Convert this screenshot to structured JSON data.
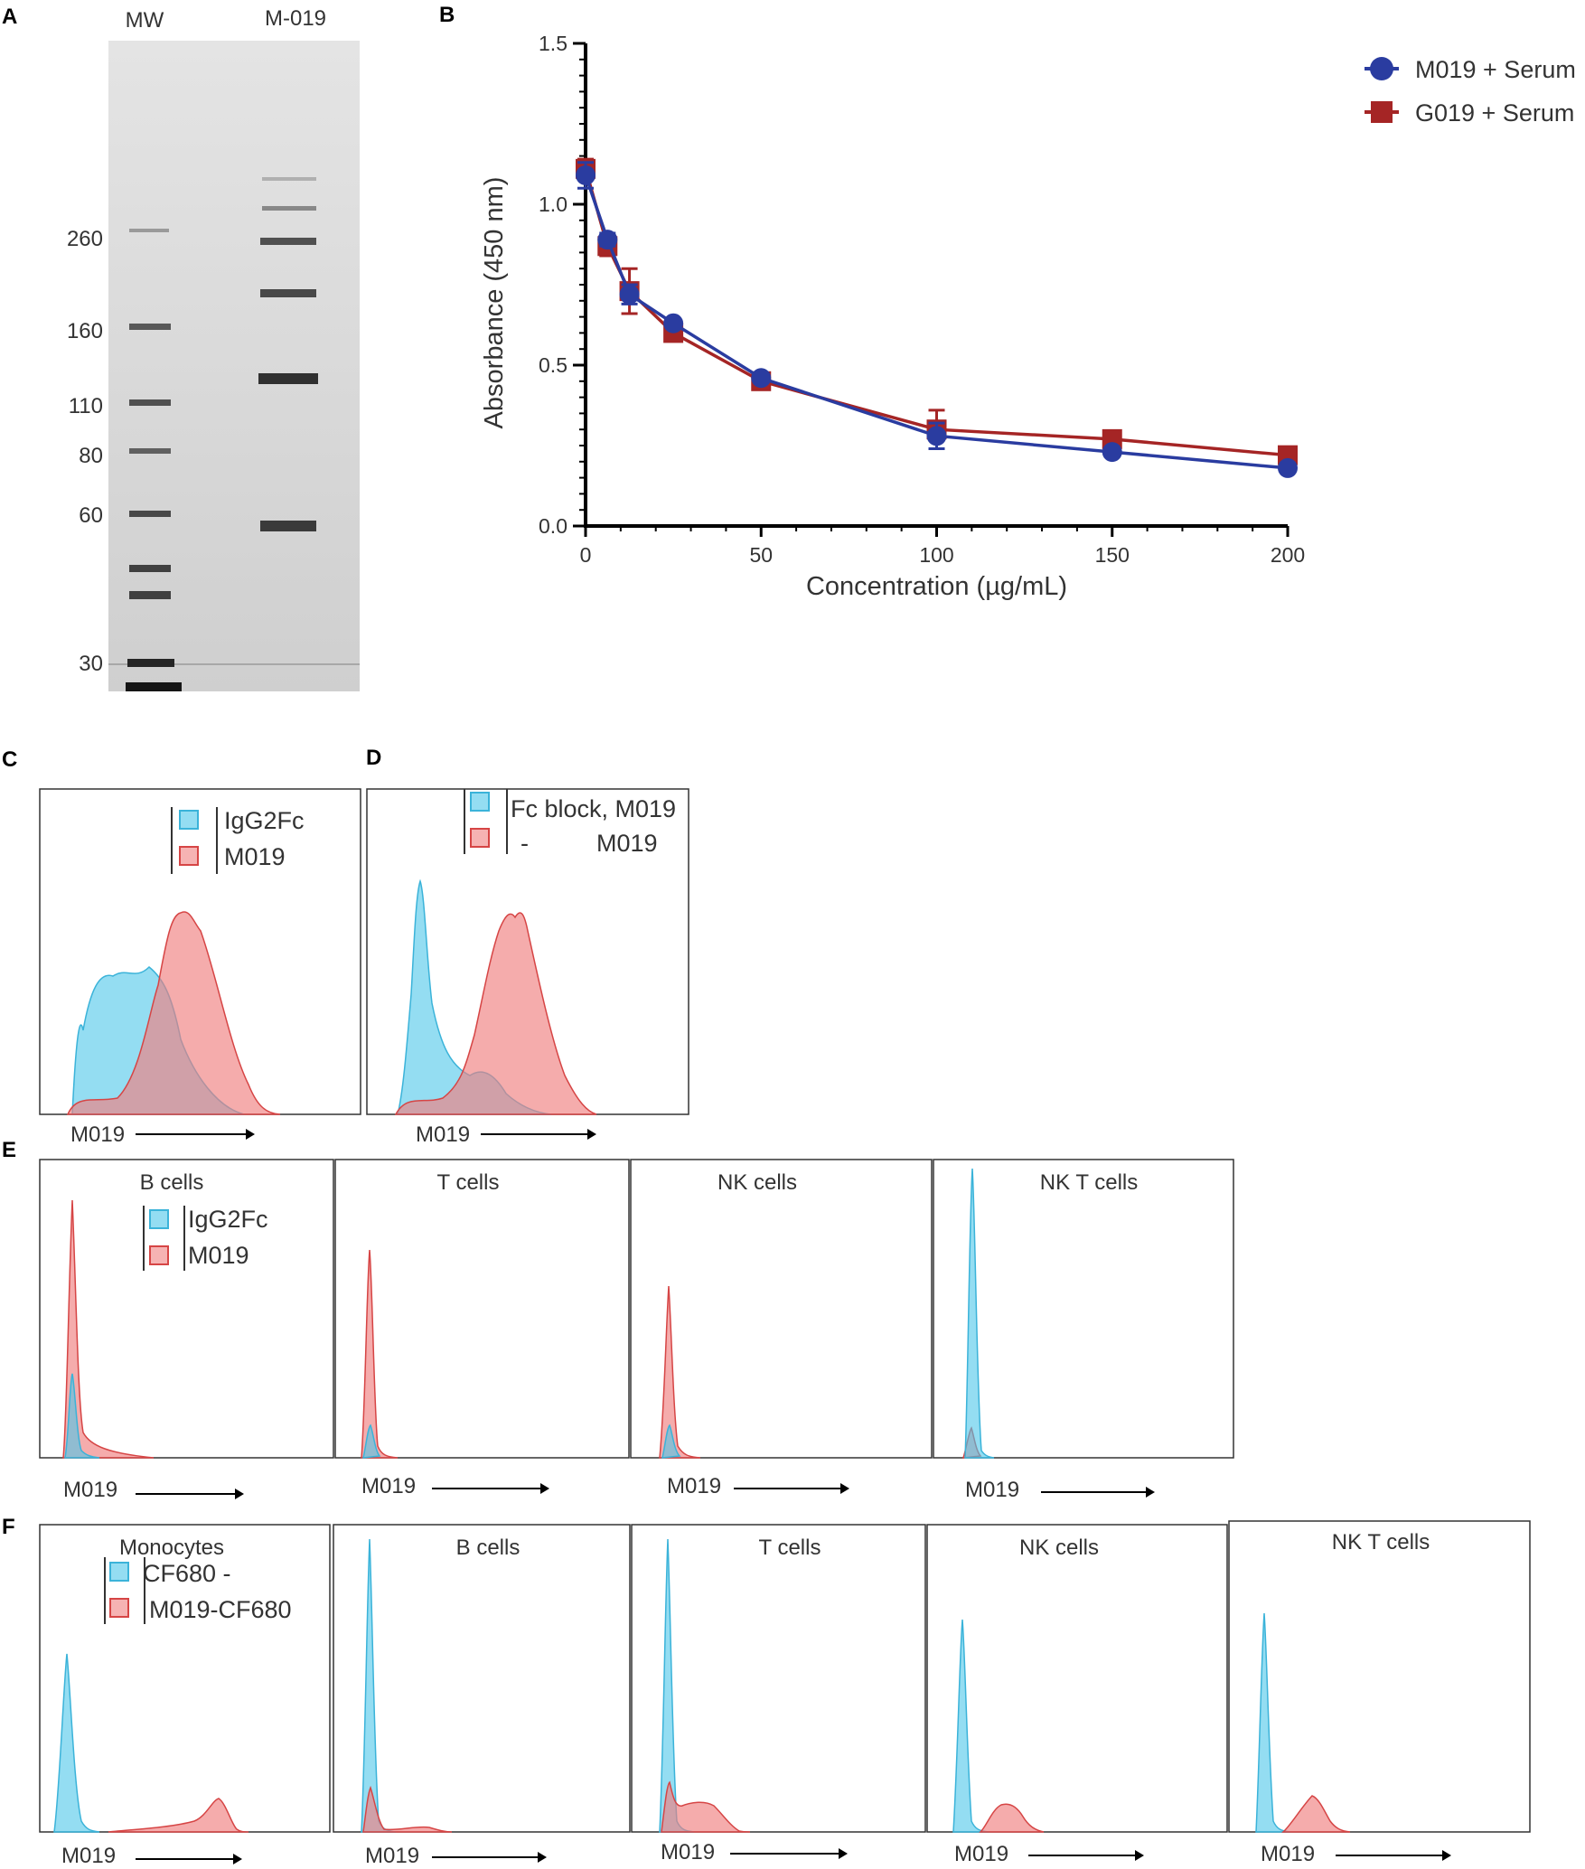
{
  "colors": {
    "blue_series": "#2a3ca0",
    "red_series": "#a52525",
    "hist_blue": "#4cc7ea",
    "hist_red": "#f08080",
    "gel_bg": "#d8d8d8",
    "band": "#3a3a3a"
  },
  "panel_a": {
    "letter": "A",
    "lane_labels": [
      "MW",
      "M-019"
    ],
    "markers": [
      "260",
      "160",
      "110",
      "80",
      "60",
      "30"
    ]
  },
  "panel_b": {
    "letter": "B",
    "legend": [
      "M019 + Serum",
      "G019 + Serum"
    ]
  },
  "chart_data": {
    "type": "line",
    "title": "",
    "xlabel": "Concentration (µg/mL)",
    "ylabel": "Absorbance (450 nm)",
    "xlim": [
      0,
      200
    ],
    "ylim": [
      0,
      1.5
    ],
    "xticks": [
      "0",
      "50",
      "100",
      "150",
      "200"
    ],
    "yticks": [
      "0.0",
      "0.5",
      "1.0",
      "1.5"
    ],
    "x": [
      0,
      6.25,
      12.5,
      25,
      50,
      100,
      150,
      200
    ],
    "series": [
      {
        "name": "M019 + Serum",
        "values": [
          1.09,
          0.89,
          0.72,
          0.63,
          0.46,
          0.28,
          0.23,
          0.18
        ],
        "errors": [
          0.04,
          0.02,
          0.03,
          0.01,
          0.01,
          0.04,
          0.01,
          0.01
        ]
      },
      {
        "name": "G019 + Serum",
        "values": [
          1.11,
          0.87,
          0.73,
          0.6,
          0.45,
          0.3,
          0.27,
          0.22
        ],
        "errors": [
          0.03,
          0.03,
          0.07,
          0.01,
          0.01,
          0.06,
          0.02,
          0.01
        ]
      }
    ]
  },
  "panel_c": {
    "letter": "C",
    "legend": [
      "IgG2Fc",
      "M019"
    ],
    "xlabel": "M019"
  },
  "panel_d": {
    "letter": "D",
    "legend": [
      "Fc block, M019",
      "-          M019"
    ],
    "xlabel": "M019"
  },
  "panel_e": {
    "letter": "E",
    "legend": [
      "IgG2Fc",
      "M019"
    ],
    "xlabel": "M019",
    "titles": [
      "B cells",
      "T cells",
      "NK cells",
      "NK T cells"
    ]
  },
  "panel_f": {
    "letter": "F",
    "legend": [
      "CF680 -",
      "M019-CF680"
    ],
    "xlabel": "M019",
    "titles": [
      "Monocytes",
      "B cells",
      "T cells",
      "NK cells",
      "NK T cells"
    ]
  }
}
